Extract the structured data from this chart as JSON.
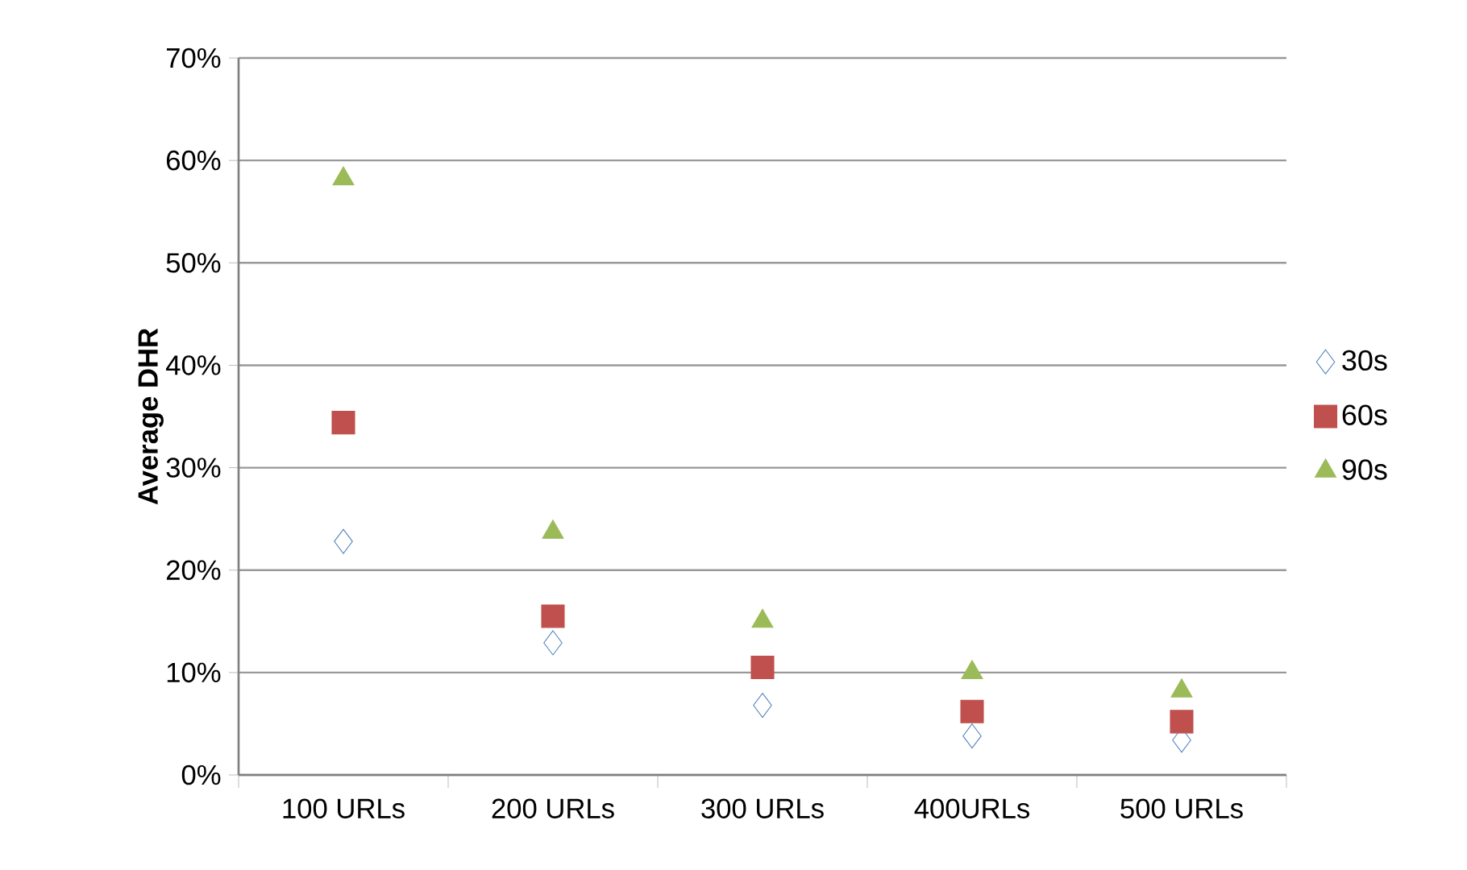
{
  "chart_data": {
    "type": "scatter",
    "ylabel": "Average DHR",
    "categories": [
      "100 URLs",
      "200 URLs",
      "300 URLs",
      "400URLs",
      "500 URLs"
    ],
    "series": [
      {
        "name": "30s",
        "color": "#4f81bd",
        "marker": "diamond",
        "values": [
          22.8,
          12.9,
          6.8,
          3.8,
          3.4
        ]
      },
      {
        "name": "60s",
        "color": "#c0504d",
        "marker": "square",
        "values": [
          34.4,
          15.5,
          10.5,
          6.2,
          5.2
        ]
      },
      {
        "name": "90s",
        "color": "#9bbb59",
        "marker": "triangle",
        "values": [
          58.2,
          23.7,
          15.0,
          10.0,
          8.2
        ]
      }
    ],
    "ylim": [
      0,
      70
    ],
    "yticks": [
      {
        "value": 0,
        "label": "0%"
      },
      {
        "value": 10,
        "label": "10%"
      },
      {
        "value": 20,
        "label": "20%"
      },
      {
        "value": 30,
        "label": "30%"
      },
      {
        "value": 40,
        "label": "40%"
      },
      {
        "value": 50,
        "label": "50%"
      },
      {
        "value": 60,
        "label": "60%"
      },
      {
        "value": 70,
        "label": "70%"
      }
    ],
    "grid": "y",
    "legend": "right"
  }
}
